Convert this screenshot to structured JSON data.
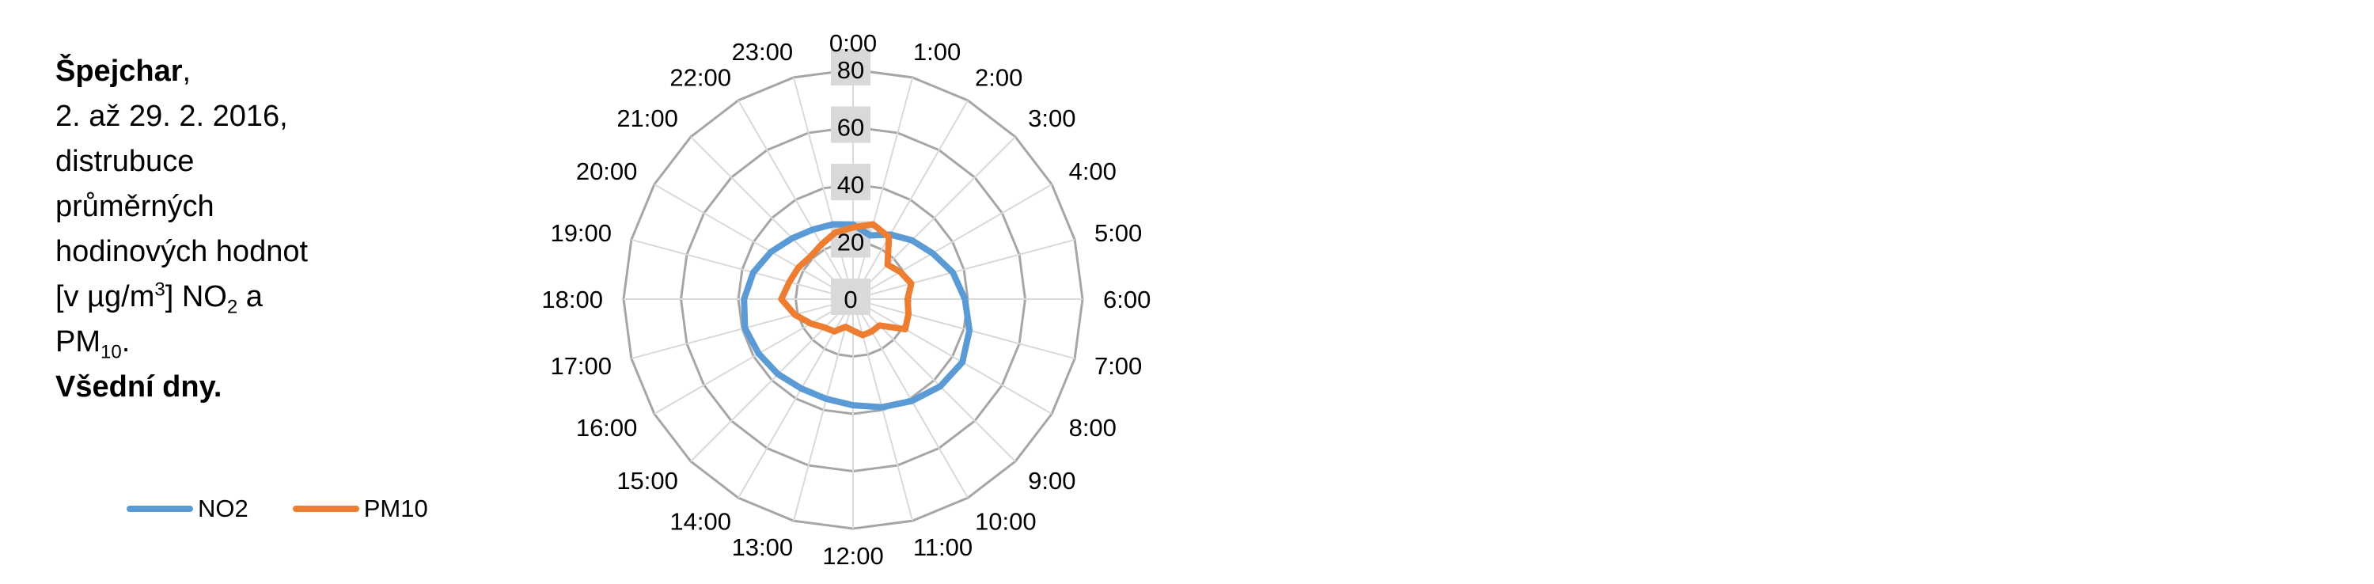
{
  "caption": {
    "station": "Špejchar",
    "station_suffix": ",",
    "dates": "2. až 29. 2. 2016,",
    "line3": "distrubuce",
    "line4": "průměrných",
    "line5": "hodinových hodnot",
    "unit_prefix": "[v µg/m",
    "unit_sup": "3",
    "unit_mid": "] NO",
    "unit_sub": "2",
    "unit_end": " a",
    "pm_prefix": "PM",
    "pm_sub": "10",
    "pm_end": ".",
    "day_type": "Všední dny."
  },
  "chart_data": {
    "type": "radar",
    "categories": [
      "1:00",
      "2:00",
      "3:00",
      "4:00",
      "5:00",
      "6:00",
      "7:00",
      "8:00",
      "9:00",
      "10:00",
      "11:00",
      "12:00",
      "13:00",
      "14:00",
      "15:00",
      "16:00",
      "17:00",
      "18:00",
      "19:00",
      "20:00",
      "21:00",
      "22:00",
      "23:00",
      "0:00"
    ],
    "radial_axis": {
      "min": 0,
      "max": 80,
      "ticks": [
        0,
        20,
        40,
        60,
        80
      ]
    },
    "series": [
      {
        "name": "NO2",
        "color": "#5b9bd5",
        "values": [
          23,
          26,
          29,
          32,
          36,
          39,
          42,
          44,
          43,
          41,
          39,
          37,
          36,
          36,
          37,
          38,
          39,
          38,
          36,
          33,
          30,
          28,
          27,
          26
        ]
      },
      {
        "name": "PM10",
        "color": "#ed7d31",
        "values": [
          27,
          25,
          17,
          19,
          21,
          19,
          20,
          21,
          13,
          13,
          13,
          11,
          10,
          13,
          14,
          17,
          21,
          25,
          23,
          22,
          21,
          22,
          24,
          25
        ]
      }
    ],
    "legend_position": "bottom-left"
  }
}
